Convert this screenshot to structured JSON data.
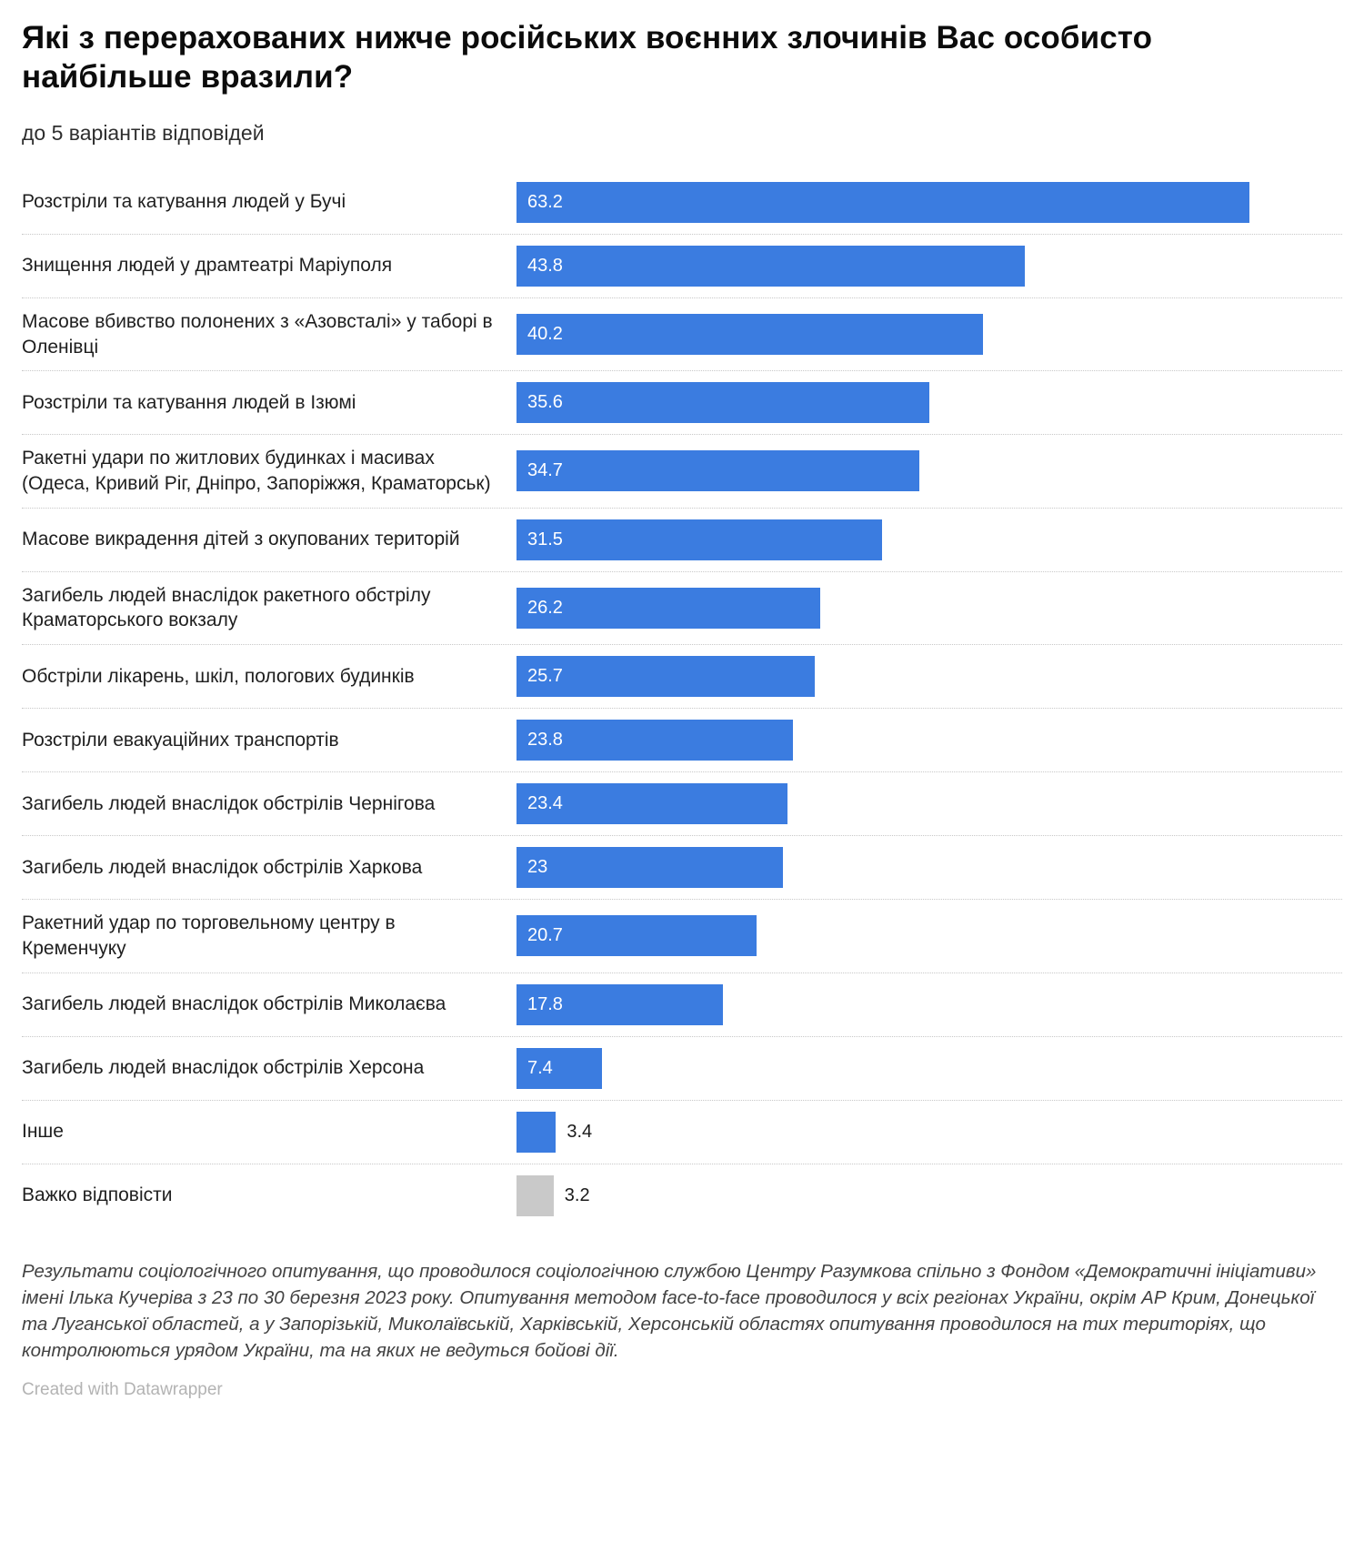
{
  "header": {
    "title": "Які з перерахованих нижче російських воєнних злочинів Вас особисто найбільше вразили?",
    "subtitle": "до 5 варіантів відповідей"
  },
  "chart_data": {
    "type": "bar",
    "orientation": "horizontal",
    "title": "Які з перерахованих нижче російських воєнних злочинів Вас особисто найбільше вразили?",
    "subtitle": "до 5 варіантів відповідей",
    "xlim": [
      0,
      63.2
    ],
    "grid": false,
    "legend": "none",
    "colors": {
      "bar": "#3b7ce0",
      "muted": "#c9c9c9"
    },
    "categories": [
      "Розстріли та катування людей у Бучі",
      "Знищення людей у драмтеатрі Маріуполя",
      "Масове вбивство полонених з «Азовсталі» у таборі в Оленівці",
      "Розстріли та катування людей в Ізюмі",
      "Ракетні удари по житлових будинках і масивах (Одеса, Кривий Ріг, Дніпро, Запоріжжя, Краматорськ)",
      "Масове викрадення дітей з окупованих територій",
      "Загибель людей внаслідок ракетного обстрілу Краматорського вокзалу",
      "Обстріли лікарень, шкіл, пологових будинків",
      "Розстріли евакуаційних транспортів",
      "Загибель людей внаслідок обстрілів Чернігова",
      "Загибель людей внаслідок обстрілів Харкова",
      "Ракетний удар по торговельному центру в Кременчуку",
      "Загибель людей внаслідок обстрілів Миколаєва",
      "Загибель людей внаслідок обстрілів Херсона",
      "Інше",
      "Важко відповісти"
    ],
    "values": [
      63.2,
      43.8,
      40.2,
      35.6,
      34.7,
      31.5,
      26.2,
      25.7,
      23.8,
      23.4,
      23,
      20.7,
      17.8,
      7.4,
      3.4,
      3.2
    ],
    "rows": [
      {
        "label": "Розстріли та катування людей у Бучі",
        "value": 63.2,
        "display": "63.2",
        "color": "bar",
        "value_label_position": "inside"
      },
      {
        "label": "Знищення людей у драмтеатрі Маріуполя",
        "value": 43.8,
        "display": "43.8",
        "color": "bar",
        "value_label_position": "inside"
      },
      {
        "label": "Масове вбивство полонених з «Азовсталі» у таборі в Оленівці",
        "value": 40.2,
        "display": "40.2",
        "color": "bar",
        "value_label_position": "inside"
      },
      {
        "label": "Розстріли та катування людей в Ізюмі",
        "value": 35.6,
        "display": "35.6",
        "color": "bar",
        "value_label_position": "inside"
      },
      {
        "label": "Ракетні удари по житлових будинках і масивах (Одеса, Кривий Ріг, Дніпро, Запоріжжя, Краматорськ)",
        "value": 34.7,
        "display": "34.7",
        "color": "bar",
        "value_label_position": "inside"
      },
      {
        "label": "Масове викрадення дітей з окупованих територій",
        "value": 31.5,
        "display": "31.5",
        "color": "bar",
        "value_label_position": "inside"
      },
      {
        "label": "Загибель людей внаслідок ракетного обстрілу Краматорського вокзалу",
        "value": 26.2,
        "display": "26.2",
        "color": "bar",
        "value_label_position": "inside"
      },
      {
        "label": "Обстріли лікарень, шкіл, пологових будинків",
        "value": 25.7,
        "display": "25.7",
        "color": "bar",
        "value_label_position": "inside"
      },
      {
        "label": "Розстріли евакуаційних транспортів",
        "value": 23.8,
        "display": "23.8",
        "color": "bar",
        "value_label_position": "inside"
      },
      {
        "label": "Загибель людей внаслідок обстрілів Чернігова",
        "value": 23.4,
        "display": "23.4",
        "color": "bar",
        "value_label_position": "inside"
      },
      {
        "label": "Загибель людей внаслідок обстрілів Харкова",
        "value": 23,
        "display": "23",
        "color": "bar",
        "value_label_position": "inside"
      },
      {
        "label": "Ракетний удар по торговельному центру в Кременчуку",
        "value": 20.7,
        "display": "20.7",
        "color": "bar",
        "value_label_position": "inside"
      },
      {
        "label": "Загибель людей внаслідок обстрілів Миколаєва",
        "value": 17.8,
        "display": "17.8",
        "color": "bar",
        "value_label_position": "inside"
      },
      {
        "label": "Загибель людей внаслідок обстрілів Херсона",
        "value": 7.4,
        "display": "7.4",
        "color": "bar",
        "value_label_position": "inside"
      },
      {
        "label": "Інше",
        "value": 3.4,
        "display": "3.4",
        "color": "bar",
        "value_label_position": "outside"
      },
      {
        "label": "Важко відповісти",
        "value": 3.2,
        "display": "3.2",
        "color": "muted",
        "value_label_position": "outside"
      }
    ]
  },
  "footer": {
    "source_note": "Результати соціологічного опитування, що проводилося соціологічною службою Центру Разумкова спільно з Фондом «Демократичні ініціативи» імені Ілька Кучеріва з 23 по 30 березня 2023 року. Опитування методом face-to-face проводилося у всіх регіонах України, окрім АР Крим, Донецької та Луганської областей, а у Запорізькій, Миколаївській, Харківській, Херсонській областях опитування проводилося на тих територіях, що контролюються урядом України, та на яких не ведуться бойові дії.",
    "credit": "Created with Datawrapper"
  }
}
